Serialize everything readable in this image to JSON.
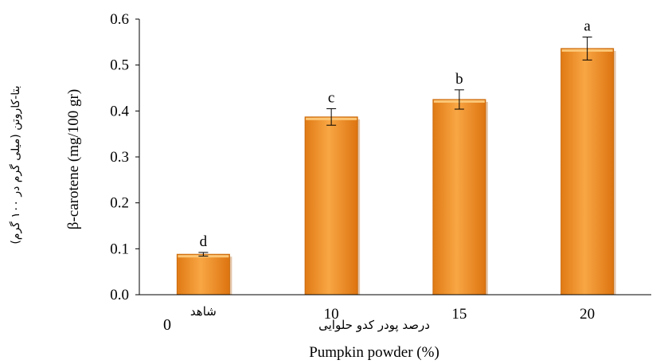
{
  "chart_data": {
    "type": "bar",
    "categories": [
      "شاهد",
      "10",
      "15",
      "20"
    ],
    "values": [
      0.088,
      0.387,
      0.425,
      0.536
    ],
    "errors": [
      0.004,
      0.018,
      0.021,
      0.025
    ],
    "significance_letters": [
      "d",
      "c",
      "b",
      "a"
    ],
    "ylim": [
      0,
      0.6
    ],
    "yticks": [
      "0.0",
      "0.1",
      "0.2",
      "0.3",
      "0.4",
      "0.5",
      "0.6"
    ],
    "ylabel": "β-carotene (mg/100 gr)",
    "ylabel_fa": "بتا-کاروتن (میلی گرم در ۱۰۰ گرم)",
    "xlabel": "Pumpkin powder (%)",
    "xlabel_fa": "درصد پودر کدو حلوایی",
    "zero_label": "0",
    "bar_color": "#f0952a",
    "grid": false,
    "legend": "none"
  }
}
